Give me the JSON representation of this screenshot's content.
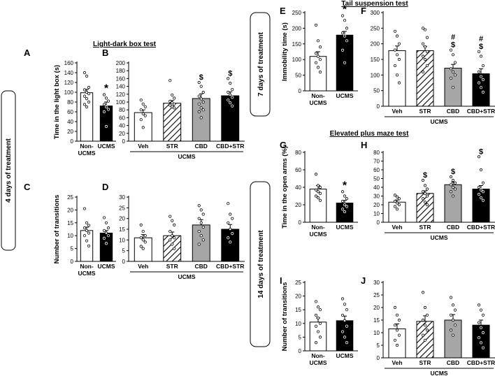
{
  "figure": {
    "section_labels": {
      "light_dark": "Light-dark box test",
      "tail": "Tail suspension test",
      "epm": "Elevated plus maze test"
    },
    "treatment_labels": {
      "four_days": "4 days of treatment",
      "seven_days": "7 days of treatment",
      "fourteen_days": "14 days of treatment"
    },
    "group_label": "UCMS"
  },
  "chart_data": [
    {
      "id": "A",
      "type": "bar",
      "panel_label": "A",
      "ylabel": "Time in the light box (s)",
      "ylim": [
        0,
        160
      ],
      "yticks": [
        0,
        20,
        40,
        60,
        80,
        100,
        120,
        140,
        160
      ],
      "categories": [
        "Non-UCMS",
        "UCMS"
      ],
      "values": [
        99,
        72
      ],
      "errors": [
        7,
        8
      ],
      "annotations": [
        "",
        "*"
      ],
      "points": [
        [
          140,
          133,
          110,
          105,
          100,
          97,
          92,
          87,
          80,
          75,
          70
        ],
        [
          95,
          88,
          82,
          75,
          70,
          65,
          60,
          30
        ]
      ]
    },
    {
      "id": "B",
      "type": "bar",
      "panel_label": "B",
      "ylabel": "",
      "ylim": [
        0,
        200
      ],
      "yticks": [
        0,
        20,
        40,
        60,
        80,
        100,
        120,
        140,
        160,
        180,
        200
      ],
      "categories": [
        "Veh",
        "STR",
        "CBD",
        "CBD+STR"
      ],
      "values": [
        73,
        97,
        109,
        116
      ],
      "errors": [
        7,
        7,
        12,
        10
      ],
      "annotations": [
        "",
        "",
        "$",
        "$"
      ],
      "group_label": "UCMS",
      "points": [
        [
          105,
          95,
          88,
          80,
          70,
          65,
          55,
          35
        ],
        [
          155,
          118,
          110,
          102,
          98,
          95,
          92,
          88,
          85
        ],
        [
          150,
          140,
          125,
          115,
          108,
          100,
          95,
          85,
          80,
          75,
          60
        ],
        [
          160,
          148,
          132,
          125,
          118,
          112,
          105,
          98,
          90
        ]
      ]
    },
    {
      "id": "C",
      "type": "bar",
      "panel_label": "C",
      "ylabel": "Number of transitions",
      "ylim": [
        0,
        25
      ],
      "yticks": [
        0,
        5,
        10,
        15,
        20,
        25
      ],
      "categories": [
        "Non-UCMS",
        "UCMS"
      ],
      "values": [
        12,
        11
      ],
      "errors": [
        1.3,
        1.0
      ],
      "annotations": [
        "",
        ""
      ],
      "points": [
        [
          20.5,
          15,
          14,
          13,
          12,
          11,
          10,
          8,
          6
        ],
        [
          17,
          15,
          13,
          12,
          11,
          10,
          9,
          7
        ]
      ]
    },
    {
      "id": "D",
      "type": "bar",
      "panel_label": "D",
      "ylabel": "",
      "ylim": [
        0,
        30
      ],
      "yticks": [
        0,
        5,
        10,
        15,
        20,
        25,
        30
      ],
      "categories": [
        "Veh",
        "STR",
        "CBD",
        "CBD+STR"
      ],
      "values": [
        11,
        12,
        17,
        15
      ],
      "errors": [
        1.5,
        1.7,
        2.5,
        2.2
      ],
      "annotations": [
        "",
        "",
        "",
        ""
      ],
      "group_label": "UCMS",
      "points": [
        [
          17,
          14,
          12,
          11,
          10,
          9,
          7,
          6
        ],
        [
          21,
          19,
          17,
          14,
          12,
          11,
          10,
          8,
          6
        ],
        [
          26,
          24,
          22,
          20,
          18,
          16,
          14,
          12,
          10,
          8
        ],
        [
          27,
          22,
          20,
          18,
          15,
          13,
          11,
          9
        ]
      ]
    },
    {
      "id": "E",
      "type": "bar",
      "panel_label": "E",
      "ylabel": "Immobility time (s)",
      "ylim": [
        0,
        250
      ],
      "yticks": [
        0,
        50,
        100,
        150,
        200,
        250
      ],
      "categories": [
        "Non-UCMS",
        "UCMS"
      ],
      "values": [
        110,
        178
      ],
      "errors": [
        15,
        12
      ],
      "annotations": [
        "",
        "*"
      ],
      "points": [
        [
          210,
          160,
          140,
          120,
          110,
          100,
          90,
          75,
          60
        ],
        [
          240,
          225,
          200,
          185,
          175,
          160,
          130,
          90
        ]
      ]
    },
    {
      "id": "F",
      "type": "bar",
      "panel_label": "F",
      "ylabel": "",
      "ylim": [
        0,
        300
      ],
      "yticks": [
        0,
        50,
        100,
        150,
        200,
        250,
        300
      ],
      "categories": [
        "Veh",
        "STR",
        "CBD",
        "CBD+STR"
      ],
      "values": [
        178,
        178,
        122,
        104
      ],
      "errors": [
        15,
        14,
        12,
        16
      ],
      "annotations": [
        "",
        "",
        "#\n$",
        "#\n$"
      ],
      "group_label": "UCMS",
      "points": [
        [
          240,
          225,
          200,
          180,
          165,
          150,
          130,
          100,
          75
        ],
        [
          250,
          245,
          220,
          200,
          190,
          175,
          160,
          150,
          130,
          110
        ],
        [
          180,
          165,
          140,
          120,
          110,
          100,
          90,
          60
        ],
        [
          175,
          160,
          130,
          110,
          95,
          85,
          75,
          60,
          45
        ]
      ]
    },
    {
      "id": "G",
      "type": "bar",
      "panel_label": "G",
      "ylabel": "Time in the open arms (%)",
      "ylim": [
        0,
        80
      ],
      "yticks": [
        0,
        20,
        40,
        60,
        80
      ],
      "categories": [
        "Non-UCMS",
        "UCMS"
      ],
      "values": [
        38,
        22
      ],
      "errors": [
        4,
        3
      ],
      "annotations": [
        "",
        "*"
      ],
      "points": [
        [
          55,
          42,
          40,
          37,
          35,
          33,
          30,
          28,
          25
        ],
        [
          35,
          30,
          27,
          24,
          20,
          18,
          15,
          12
        ]
      ]
    },
    {
      "id": "H",
      "type": "bar",
      "panel_label": "H",
      "ylabel": "",
      "ylim": [
        0,
        80
      ],
      "yticks": [
        0,
        10,
        20,
        30,
        40,
        50,
        60,
        70,
        80
      ],
      "categories": [
        "Veh",
        "STR",
        "CBD",
        "CBD+STR"
      ],
      "values": [
        23,
        33,
        43,
        38
      ],
      "errors": [
        2.5,
        3,
        3,
        4
      ],
      "annotations": [
        "",
        "$",
        "$",
        "$"
      ],
      "group_label": "UCMS",
      "points": [
        [
          31,
          29,
          27,
          24,
          22,
          20,
          18,
          15
        ],
        [
          48,
          42,
          38,
          35,
          33,
          30,
          27,
          23,
          20
        ],
        [
          52,
          48,
          45,
          43,
          40,
          38,
          35,
          30
        ],
        [
          75,
          60,
          45,
          40,
          37,
          35,
          32,
          28,
          25
        ]
      ]
    },
    {
      "id": "I",
      "type": "bar",
      "panel_label": "I",
      "ylabel": "Number of transitions",
      "ylim": [
        0,
        25
      ],
      "yticks": [
        0,
        5,
        10,
        15,
        20,
        25
      ],
      "categories": [
        "Non-UCMS",
        "UCMS"
      ],
      "values": [
        10.5,
        11
      ],
      "errors": [
        1.5,
        1.7
      ],
      "annotations": [
        "",
        ""
      ],
      "points": [
        [
          18,
          16,
          15,
          13,
          12,
          10,
          9,
          7,
          5,
          3
        ],
        [
          19,
          17,
          15,
          13,
          11,
          9,
          7,
          5,
          3
        ]
      ]
    },
    {
      "id": "J",
      "type": "bar",
      "panel_label": "J",
      "ylabel": "",
      "ylim": [
        0,
        30
      ],
      "yticks": [
        0,
        5,
        10,
        15,
        20,
        25,
        30
      ],
      "categories": [
        "Veh",
        "STR",
        "CBD",
        "CBD+STR"
      ],
      "values": [
        11.5,
        14.5,
        15,
        13
      ],
      "errors": [
        2,
        2.2,
        2.2,
        2
      ],
      "annotations": [
        "",
        "",
        "",
        ""
      ],
      "group_label": "UCMS",
      "points": [
        [
          20,
          17,
          15,
          13,
          11,
          9,
          7,
          5
        ],
        [
          26,
          20,
          17,
          15,
          13,
          11,
          9,
          7
        ],
        [
          24,
          21,
          19,
          17,
          15,
          13,
          11,
          9
        ],
        [
          21,
          19,
          17,
          14,
          12,
          10,
          8,
          6,
          4
        ]
      ]
    }
  ]
}
